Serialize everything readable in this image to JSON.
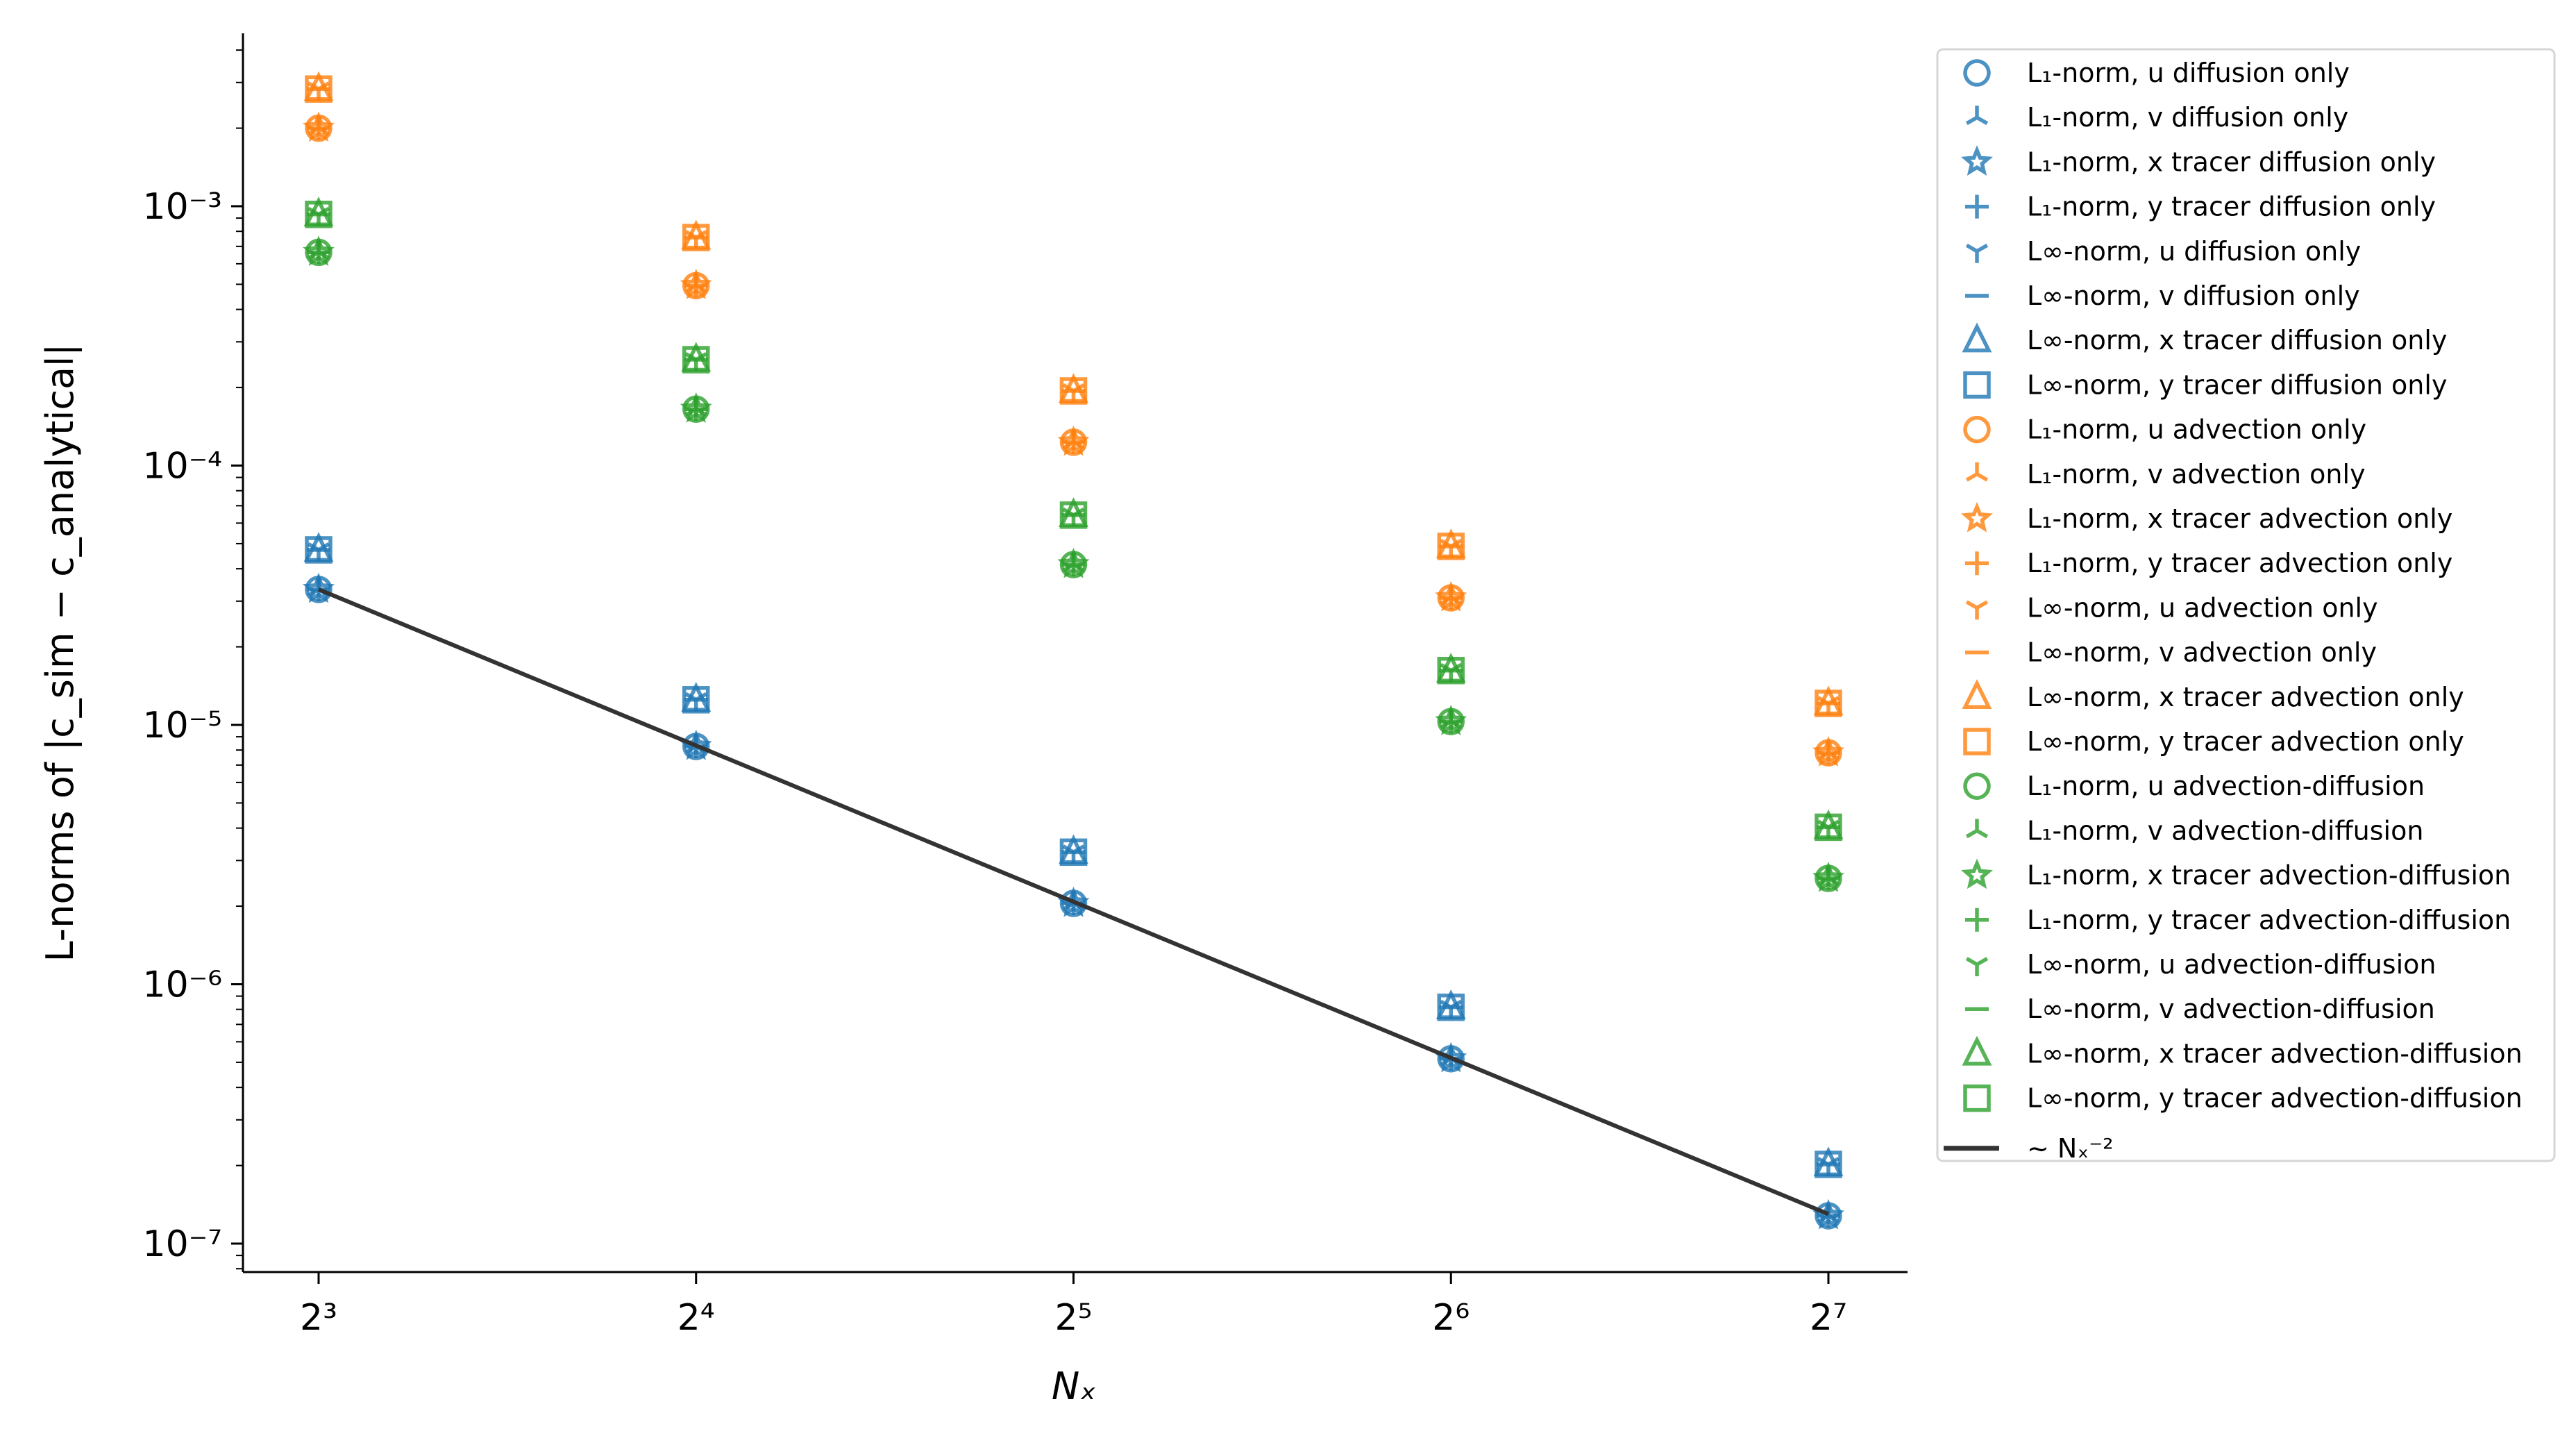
{
  "chart_data": {
    "type": "scatter",
    "xlabel": "Nₓ",
    "ylabel": "L-norms of |c_sim − c_analytical|",
    "x": [
      8,
      16,
      32,
      64,
      128
    ],
    "x_scale": "log2",
    "y_scale": "log10",
    "xticks": [
      "2³",
      "2⁴",
      "2⁵",
      "2⁶",
      "2⁷"
    ],
    "yticks": [
      {
        "value": 0.001,
        "label": "10⁻³"
      },
      {
        "value": 0.0001,
        "label": "10⁻⁴"
      },
      {
        "value": 1e-05,
        "label": "10⁻⁵"
      },
      {
        "value": 1e-06,
        "label": "10⁻⁶"
      },
      {
        "value": 1e-07,
        "label": "10⁻⁷"
      }
    ],
    "ylim": [
      7.8e-08,
      0.0046
    ],
    "xlim": [
      6.9,
      148
    ],
    "grid": false,
    "legend_placement": "outside-right",
    "colors": {
      "diffusion": "#1f77b4",
      "advection": "#ff7f0e",
      "advection_diffusion": "#2ca02c",
      "reference": "#333333"
    },
    "series": [
      {
        "name": "L₁-norm, u diffusion only",
        "color": "#1f77b4",
        "marker": "circle",
        "values": [
          3.33e-05,
          8.26e-06,
          2.05e-06,
          5.16e-07,
          1.28e-07
        ]
      },
      {
        "name": "L₁-norm, v diffusion only",
        "color": "#1f77b4",
        "marker": "tri-up",
        "values": [
          3.33e-05,
          8.26e-06,
          2.05e-06,
          5.16e-07,
          1.28e-07
        ]
      },
      {
        "name": "L₁-norm, x tracer diffusion only",
        "color": "#1f77b4",
        "marker": "star",
        "values": [
          3.33e-05,
          8.26e-06,
          2.05e-06,
          5.16e-07,
          1.28e-07
        ]
      },
      {
        "name": "L₁-norm, y tracer diffusion only",
        "color": "#1f77b4",
        "marker": "plus",
        "values": [
          3.33e-05,
          8.26e-06,
          2.05e-06,
          5.16e-07,
          1.28e-07
        ]
      },
      {
        "name": "L∞-norm, u diffusion only",
        "color": "#1f77b4",
        "marker": "tri-down",
        "values": [
          4.73e-05,
          1.25e-05,
          3.23e-06,
          8.15e-07,
          2.02e-07
        ]
      },
      {
        "name": "L∞-norm, v diffusion only",
        "color": "#1f77b4",
        "marker": "hline",
        "values": [
          4.73e-05,
          1.25e-05,
          3.23e-06,
          8.15e-07,
          2.02e-07
        ]
      },
      {
        "name": "L∞-norm, x tracer diffusion only",
        "color": "#1f77b4",
        "marker": "triangle",
        "values": [
          4.73e-05,
          1.25e-05,
          3.23e-06,
          8.15e-07,
          2.02e-07
        ]
      },
      {
        "name": "L∞-norm, y tracer diffusion only",
        "color": "#1f77b4",
        "marker": "square",
        "values": [
          4.73e-05,
          1.25e-05,
          3.23e-06,
          8.15e-07,
          2.02e-07
        ]
      },
      {
        "name": "L₁-norm, u advection only",
        "color": "#ff7f0e",
        "marker": "circle",
        "values": [
          0.002,
          0.000494,
          0.000123,
          3.09e-05,
          7.8e-06
        ]
      },
      {
        "name": "L₁-norm, v advection only",
        "color": "#ff7f0e",
        "marker": "tri-up",
        "values": [
          0.002,
          0.000494,
          0.000123,
          3.09e-05,
          7.8e-06
        ]
      },
      {
        "name": "L₁-norm, x tracer advection only",
        "color": "#ff7f0e",
        "marker": "star",
        "values": [
          0.002,
          0.000494,
          0.000123,
          3.09e-05,
          7.8e-06
        ]
      },
      {
        "name": "L₁-norm, y tracer advection only",
        "color": "#ff7f0e",
        "marker": "plus",
        "values": [
          0.002,
          0.000494,
          0.000123,
          3.09e-05,
          7.8e-06
        ]
      },
      {
        "name": "L∞-norm, u advection only",
        "color": "#ff7f0e",
        "marker": "tri-down",
        "values": [
          0.00283,
          0.000757,
          0.000194,
          4.88e-05,
          1.21e-05
        ]
      },
      {
        "name": "L∞-norm, v advection only",
        "color": "#ff7f0e",
        "marker": "hline",
        "values": [
          0.00283,
          0.000757,
          0.000194,
          4.88e-05,
          1.21e-05
        ]
      },
      {
        "name": "L∞-norm, x tracer advection only",
        "color": "#ff7f0e",
        "marker": "triangle",
        "values": [
          0.00283,
          0.000757,
          0.000194,
          4.88e-05,
          1.21e-05
        ]
      },
      {
        "name": "L∞-norm, y tracer advection only",
        "color": "#ff7f0e",
        "marker": "square",
        "values": [
          0.00283,
          0.000757,
          0.000194,
          4.88e-05,
          1.21e-05
        ]
      },
      {
        "name": "L₁-norm, u advection-diffusion",
        "color": "#2ca02c",
        "marker": "circle",
        "values": [
          0.000664,
          0.000165,
          4.15e-05,
          1.03e-05,
          2.56e-06
        ]
      },
      {
        "name": "L₁-norm, v advection-diffusion",
        "color": "#2ca02c",
        "marker": "tri-up",
        "values": [
          0.000664,
          0.000165,
          4.15e-05,
          1.03e-05,
          2.56e-06
        ]
      },
      {
        "name": "L₁-norm, x tracer advection-diffusion",
        "color": "#2ca02c",
        "marker": "star",
        "values": [
          0.000664,
          0.000165,
          4.15e-05,
          1.03e-05,
          2.56e-06
        ]
      },
      {
        "name": "L₁-norm, y tracer advection-diffusion",
        "color": "#2ca02c",
        "marker": "plus",
        "values": [
          0.000664,
          0.000165,
          4.15e-05,
          1.03e-05,
          2.56e-06
        ]
      },
      {
        "name": "L∞-norm, u advection-diffusion",
        "color": "#2ca02c",
        "marker": "tri-down",
        "values": [
          0.00093,
          0.000256,
          6.44e-05,
          1.62e-05,
          4.03e-06
        ]
      },
      {
        "name": "L∞-norm, v advection-diffusion",
        "color": "#2ca02c",
        "marker": "hline",
        "values": [
          0.00093,
          0.000256,
          6.44e-05,
          1.62e-05,
          4.03e-06
        ]
      },
      {
        "name": "L∞-norm, x tracer advection-diffusion",
        "color": "#2ca02c",
        "marker": "triangle",
        "values": [
          0.00093,
          0.000256,
          6.44e-05,
          1.62e-05,
          4.03e-06
        ]
      },
      {
        "name": "L∞-norm, y tracer advection-diffusion",
        "color": "#2ca02c",
        "marker": "square",
        "values": [
          0.00093,
          0.000256,
          6.44e-05,
          1.62e-05,
          4.03e-06
        ]
      }
    ],
    "reference_line": {
      "name": "~ Nₓ⁻²",
      "color": "#333333",
      "x": [
        8,
        128
      ],
      "values": [
        3.33e-05,
        1.3e-07
      ]
    }
  }
}
